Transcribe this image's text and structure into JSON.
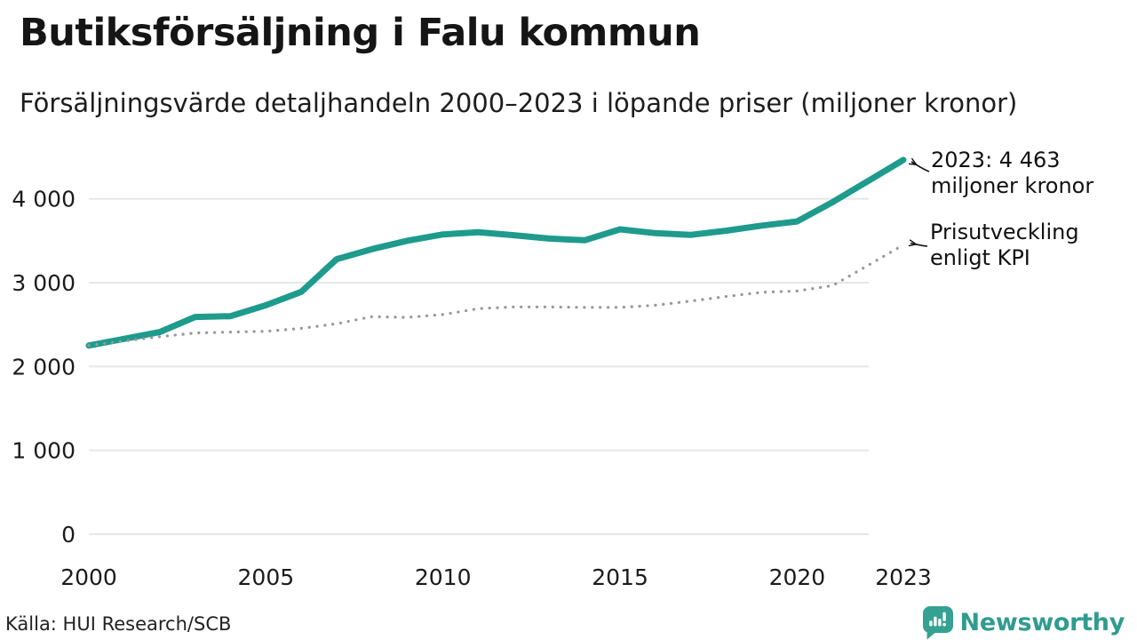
{
  "header": {
    "title": "Butiksförsäljning i Falu kommun",
    "subtitle": "Försäljningsvärde detaljhandeln 2000–2023 i löpande priser (miljoner kronor)"
  },
  "chart_data": {
    "type": "line",
    "title": "Butiksförsäljning i Falu kommun",
    "subtitle": "Försäljningsvärde detaljhandeln 2000–2023 i löpande priser (miljoner kronor)",
    "unit": "miljoner kronor",
    "x": [
      2000,
      2001,
      2002,
      2003,
      2004,
      2005,
      2006,
      2007,
      2008,
      2009,
      2010,
      2011,
      2012,
      2013,
      2014,
      2015,
      2016,
      2017,
      2018,
      2019,
      2020,
      2021,
      2022,
      2023
    ],
    "series": [
      {
        "name": "Försäljningsvärde löpande priser",
        "style": "solid",
        "color": "#1e9b8c",
        "values": [
          2250,
          2330,
          2410,
          2590,
          2600,
          2730,
          2890,
          3280,
          3400,
          3500,
          3575,
          3600,
          3565,
          3525,
          3505,
          3635,
          3590,
          3570,
          3620,
          3680,
          3730,
          3960,
          4210,
          4463
        ]
      },
      {
        "name": "Prisutveckling enligt KPI",
        "style": "dotted",
        "color": "#979797",
        "values": [
          2250,
          2305,
          2355,
          2400,
          2410,
          2420,
          2455,
          2510,
          2595,
          2585,
          2620,
          2690,
          2710,
          2710,
          2705,
          2705,
          2730,
          2780,
          2835,
          2885,
          2900,
          2965,
          3205,
          3450
        ]
      }
    ],
    "yticks": [
      {
        "value": 0,
        "label": "0"
      },
      {
        "value": 1000,
        "label": "1 000"
      },
      {
        "value": 2000,
        "label": "2 000"
      },
      {
        "value": 3000,
        "label": "3 000"
      },
      {
        "value": 4000,
        "label": "4 000"
      }
    ],
    "xticks": [
      {
        "value": 2000,
        "label": "2000"
      },
      {
        "value": 2005,
        "label": "2005"
      },
      {
        "value": 2010,
        "label": "2010"
      },
      {
        "value": 2015,
        "label": "2015"
      },
      {
        "value": 2020,
        "label": "2020"
      },
      {
        "value": 2023,
        "label": "2023"
      }
    ],
    "ylim": [
      0,
      4650
    ],
    "xlim": [
      2000,
      2023
    ],
    "grid": "horizontal",
    "legend_position": "annotations-right",
    "annotations": [
      {
        "lines": [
          "2023: 4 463",
          "miljoner kronor"
        ],
        "series": "Försäljningsvärde löpande priser",
        "x": 2023,
        "y": 4463
      },
      {
        "lines": [
          "Prisutveckling",
          "enligt KPI"
        ],
        "series": "Prisutveckling enligt KPI",
        "x": 2023,
        "y": 3450
      }
    ]
  },
  "colors": {
    "accent_teal": "#1e9b8c",
    "kpi_gray": "#979797",
    "gridline": "#e7e7e7",
    "text": "#151515",
    "brand_teal": "#2f9c8e"
  },
  "footer": {
    "source": "Källa: HUI Research/SCB",
    "brand": "Newsworthy"
  }
}
